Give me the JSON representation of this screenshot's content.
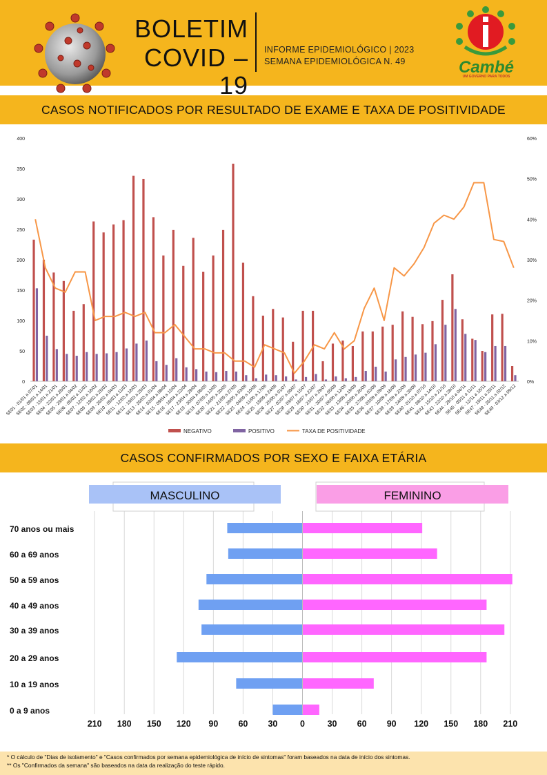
{
  "header": {
    "title_line1": "BOLETIM",
    "title_line2": "COVID – 19",
    "subtitle_line1": "INFORME EPIDEMIOLÓGICO | 2023",
    "subtitle_line2": "SEMANA EPIDEMIOLÓGICA  N. 49",
    "logo_name": "Cambé",
    "logo_tagline": "UM GOVERNO PARA TODOS"
  },
  "sections": {
    "chart1_title": "CASOS NOTIFICADOS POR RESULTADO DE EXAME E TAXA DE POSITIVIDADE",
    "chart2_title": "CASOS CONFIRMADOS POR SEXO E FAIXA ETÁRIA"
  },
  "footer": {
    "note1": "* O cálculo de \"Dias de isolamento\" e \"Casos confirmados por semana epidemiológica de início de sintomas\" foram baseados na data de início dos sintomas.",
    "note2": "** Os \"Confirmados da semana\" são baseados na data da realização do teste rápido."
  },
  "colors": {
    "band": "#f5b51d",
    "negative": "#c0504d",
    "positive": "#8064a2",
    "rate": "#f79646",
    "male_bar": "#6fa0f2",
    "female_bar": "#ff66ff",
    "male_label_bg": "#a9c2f7",
    "female_label_bg": "#fa9ee6"
  },
  "chart_data": [
    {
      "type": "bar",
      "categories": [
        "SE01 - 01/01 a 07/01",
        "SE02 - 08/01 a 14/01",
        "SE03 - 15/01 a 21/01",
        "SE04 - 22/01 a 28/01",
        "SE05 - 29/01 a 04/02",
        "SE06 - 05/02 a 11/02",
        "SE07 - 12/02 a 18/02",
        "SE08 - 19/02 a 25/02",
        "SE09 - 26/02 a 04/03",
        "SE10 - 05/03 a 11/03",
        "SE11 - 12/03 a 18/03",
        "SE12 - 19/03 a 25/03",
        "SE13 - 26/03 a 01/04",
        "SE14 - 02/04 a 08/04",
        "SE15 - 09/04 a 15/04",
        "SE16 - 16/04 a 22/04",
        "SE17 - 23/04 a 29/04",
        "SE18 - 30/04 a 06/05",
        "SE19 - 07/05 a 13/05",
        "SE20 - 14/05 a 20/05",
        "SE21 - 21/05 a 27/05",
        "SE22 - 28/05 a 03/06",
        "SE23 - 04/06 a 10/06",
        "SE24 - 11/06 a 17/06",
        "SE25 - 18/06 a 24/06",
        "SE26 - 25/06 a 01/07",
        "SE27 - 02/07 a 08/07",
        "SE28 - 09/07 a 15/07",
        "SE29 - 16/07 a 22/07",
        "SE30 - 23/07 a 29/07",
        "SE31 - 30/07 a 05/08",
        "SE32 - 06/08 a 12/08",
        "SE33 - 13/08 a 19/08",
        "SE34 - 20/08 a 26/08",
        "SE35 - 27/08 a 02/09",
        "SE36 - 03/09 a 09/09",
        "SE37 - 10/09 a 16/09",
        "SE38 - 17/09 a 23/09",
        "SE39 - 24/09 a 30/09",
        "SE40 - 01/10 a 07/10",
        "SE41 - 08/10 a 14/10",
        "SE42 - 15/10 a 21/10",
        "SE43 - 22/10 a 28/10",
        "SE44 - 29/10 a 04/11",
        "SE45 - 05/11 a 11/11",
        "SE46 - 12/11 a 18/11",
        "SE47 - 19/11 a 25/11",
        "SE48 - 26/11 a 02/12",
        "SE49 - 03/12 a 09/12"
      ],
      "series": [
        {
          "name": "NEGATIVO",
          "axis": "left",
          "kind": "bar",
          "values": [
            233,
            200,
            179,
            165,
            116,
            127,
            263,
            245,
            258,
            265,
            338,
            333,
            270,
            207,
            249,
            190,
            236,
            180,
            207,
            249,
            358,
            195,
            140,
            108,
            119,
            105,
            65,
            116,
            116,
            33,
            62,
            67,
            58,
            82,
            82,
            90,
            93,
            115,
            106,
            94,
            99,
            134,
            176,
            102,
            70,
            50,
            110,
            111,
            25
          ]
        },
        {
          "name": "POSITIVO",
          "axis": "left",
          "kind": "bar",
          "values": [
            153,
            75,
            53,
            45,
            42,
            48,
            45,
            46,
            48,
            54,
            62,
            67,
            33,
            27,
            38,
            23,
            20,
            16,
            15,
            17,
            16,
            10,
            5,
            11,
            10,
            8,
            3,
            7,
            12,
            3,
            8,
            5,
            7,
            17,
            24,
            16,
            36,
            40,
            44,
            47,
            61,
            93,
            119,
            78,
            68,
            48,
            58,
            58,
            10
          ]
        },
        {
          "name": "TAXA DE POSITIVIDADE",
          "axis": "right",
          "kind": "line",
          "values": [
            40,
            28,
            23,
            22,
            27,
            27,
            15,
            16,
            16,
            17,
            16,
            17,
            12,
            12,
            14,
            11,
            8,
            8,
            7,
            7,
            5,
            5,
            3.5,
            9,
            8,
            7,
            2,
            5,
            9,
            8,
            12,
            8,
            10,
            18,
            23,
            15,
            28,
            26,
            29,
            33,
            39,
            41,
            40,
            43,
            49,
            49,
            35,
            34.5,
            28
          ]
        }
      ],
      "ylim": [
        0,
        400
      ],
      "yticks": [
        0,
        50,
        100,
        150,
        200,
        250,
        300,
        350,
        400
      ],
      "y2lim": [
        0,
        60
      ],
      "y2ticks": [
        "0%",
        "10%",
        "20%",
        "30%",
        "40%",
        "50%",
        "60%"
      ],
      "legend": "bottom"
    },
    {
      "type": "bar",
      "orientation": "horizontal-butterfly",
      "categories": [
        "70 anos ou mais",
        "60 a 69 anos",
        "50 a 59 anos",
        "40 a 49 anos",
        "30 a 39 anos",
        "20 a 29 anos",
        "10 a 19 anos",
        "0 a 9 anos"
      ],
      "series": [
        {
          "name": "MASCULINO",
          "values": [
            76,
            75,
            97,
            105,
            102,
            127,
            67,
            30
          ]
        },
        {
          "name": "FEMININO",
          "values": [
            121,
            136,
            212,
            186,
            204,
            186,
            72,
            17
          ]
        }
      ],
      "xticks": [
        "210",
        "180",
        "150",
        "120",
        "90",
        "60",
        "30",
        "0",
        "30",
        "60",
        "90",
        "120",
        "150",
        "180",
        "210"
      ],
      "xlim": [
        -210,
        210
      ]
    }
  ]
}
